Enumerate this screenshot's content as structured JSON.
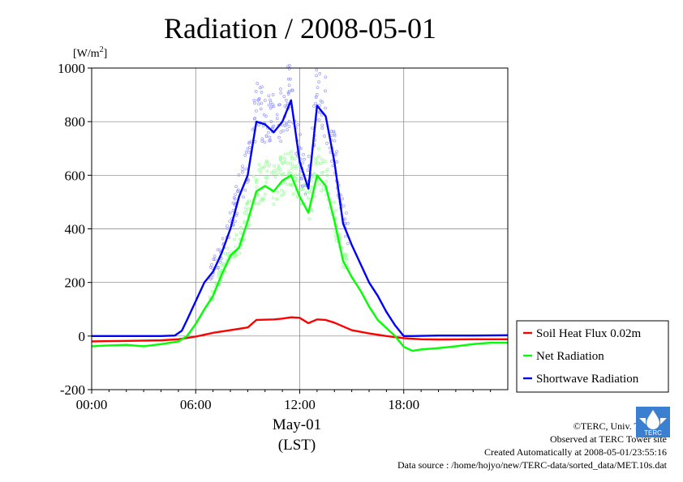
{
  "title": "Radiation / 2008-05-01",
  "credits": {
    "line1": "©TERC, Univ. Tsukuba",
    "line2": "Observed at TERC Tower site",
    "line3": "Created Automatically at 2008-05-01/23:55:16",
    "line4": "Data source : /home/hojyo/new/TERC-data/sorted_data/MET.10s.dat"
  },
  "logo_text": "TERC",
  "colors": {
    "soil": "#ff0000",
    "net": "#00ff00",
    "shortwave": "#0000ff",
    "grid": "#808080"
  },
  "chart_data": {
    "type": "line",
    "title": "Radiation / 2008-05-01",
    "ylabel": "[W/m2]",
    "xlabel": "May-01",
    "xlabel2": "(LST)",
    "ylim": [
      -200,
      1000
    ],
    "xlim": [
      0,
      24
    ],
    "yticks": [
      -200,
      0,
      200,
      400,
      600,
      800,
      1000
    ],
    "xticks": [
      0,
      6,
      12,
      18
    ],
    "xtick_labels": [
      "00:00",
      "06:00",
      "12:00",
      "18:00"
    ],
    "grid": true,
    "legend_position": "right",
    "series": [
      {
        "name": "Soil Heat Flux 0.02m",
        "color": "#ff0000",
        "x": [
          0,
          2,
          4,
          5,
          6,
          7,
          8,
          9,
          9.5,
          10.5,
          11,
          11.5,
          12,
          12.5,
          13,
          13.5,
          14,
          15,
          16,
          17,
          18,
          19,
          20,
          22,
          24
        ],
        "y": [
          -20,
          -18,
          -16,
          -12,
          -2,
          12,
          22,
          32,
          60,
          62,
          65,
          70,
          68,
          48,
          62,
          60,
          50,
          22,
          10,
          0,
          -8,
          -12,
          -13,
          -12,
          -12
        ]
      },
      {
        "name": "Net Radiation",
        "color": "#00ff00",
        "x": [
          0,
          1,
          2,
          3,
          4,
          5,
          5.5,
          6,
          6.5,
          7,
          7.5,
          8,
          8.5,
          9,
          9.5,
          10,
          10.5,
          11,
          11.5,
          12,
          12.5,
          13,
          13.5,
          14,
          14.5,
          15,
          15.5,
          16,
          16.5,
          17,
          17.5,
          18,
          18.5,
          19,
          20,
          21,
          22,
          23,
          24
        ],
        "y": [
          -38,
          -35,
          -33,
          -38,
          -30,
          -20,
          0,
          45,
          100,
          150,
          230,
          300,
          330,
          430,
          540,
          560,
          540,
          580,
          600,
          520,
          460,
          600,
          560,
          430,
          280,
          220,
          170,
          110,
          60,
          30,
          0,
          -40,
          -55,
          -50,
          -45,
          -38,
          -30,
          -25,
          -25
        ]
      },
      {
        "name": "Shortwave Radiation",
        "color": "#0000ff",
        "x": [
          0,
          2,
          4,
          4.8,
          5.2,
          5.5,
          6,
          6.5,
          7,
          7.5,
          8,
          8.5,
          9,
          9.5,
          10,
          10.5,
          11,
          11.5,
          12,
          12.5,
          13,
          13.5,
          14,
          14.5,
          15,
          15.5,
          16,
          16.5,
          17,
          17.5,
          18,
          18.5,
          20,
          22,
          24
        ],
        "y": [
          0,
          0,
          0,
          2,
          20,
          60,
          130,
          200,
          240,
          310,
          400,
          520,
          600,
          800,
          790,
          760,
          800,
          880,
          650,
          550,
          860,
          820,
          650,
          420,
          340,
          270,
          200,
          150,
          90,
          40,
          0,
          0,
          2,
          2,
          3
        ]
      }
    ]
  }
}
